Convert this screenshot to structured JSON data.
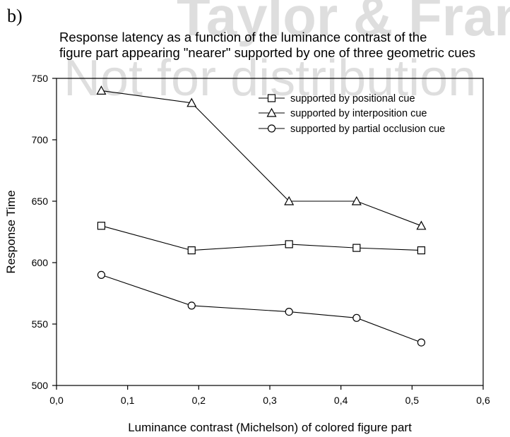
{
  "panel_label": "b)",
  "watermark": {
    "line1": "Taylor & Francis",
    "line2": "Not for distribution"
  },
  "chart_data": {
    "type": "line",
    "title": "Response latency as a function of the luminance contrast of the figure part appearing \"nearer\" supported by one of three geometric cues",
    "title_lines": [
      "Response latency as a function of the luminance contrast of the",
      "figure part appearing \"nearer\" supported by one of three geometric cues"
    ],
    "xlabel": "Luminance contrast (Michelson) of colored figure part",
    "ylabel": "Response Time",
    "xlim": [
      0.0,
      0.6
    ],
    "ylim": [
      500,
      750
    ],
    "x_ticks": [
      0.0,
      0.1,
      0.2,
      0.3,
      0.4,
      0.5,
      0.6
    ],
    "x_tick_labels": [
      "0,0",
      "0,1",
      "0,2",
      "0,3",
      "0,4",
      "0,5",
      "0,6"
    ],
    "y_ticks": [
      500,
      550,
      600,
      650,
      700,
      750
    ],
    "y_tick_labels": [
      "500",
      "550",
      "600",
      "650",
      "700",
      "750"
    ],
    "grid": false,
    "legend_position": "top-right",
    "series": [
      {
        "name": "supported by positional cue",
        "marker": "square",
        "x": [
          0.063,
          0.19,
          0.327,
          0.422,
          0.513
        ],
        "y": [
          630,
          610,
          615,
          612,
          610
        ]
      },
      {
        "name": "supported by interposition cue",
        "marker": "triangle",
        "x": [
          0.063,
          0.19,
          0.327,
          0.422,
          0.513
        ],
        "y": [
          740,
          730,
          650,
          650,
          630
        ]
      },
      {
        "name": "supported by partial occlusion cue",
        "marker": "circle",
        "x": [
          0.063,
          0.19,
          0.327,
          0.422,
          0.513
        ],
        "y": [
          590,
          565,
          560,
          555,
          535
        ]
      }
    ]
  }
}
